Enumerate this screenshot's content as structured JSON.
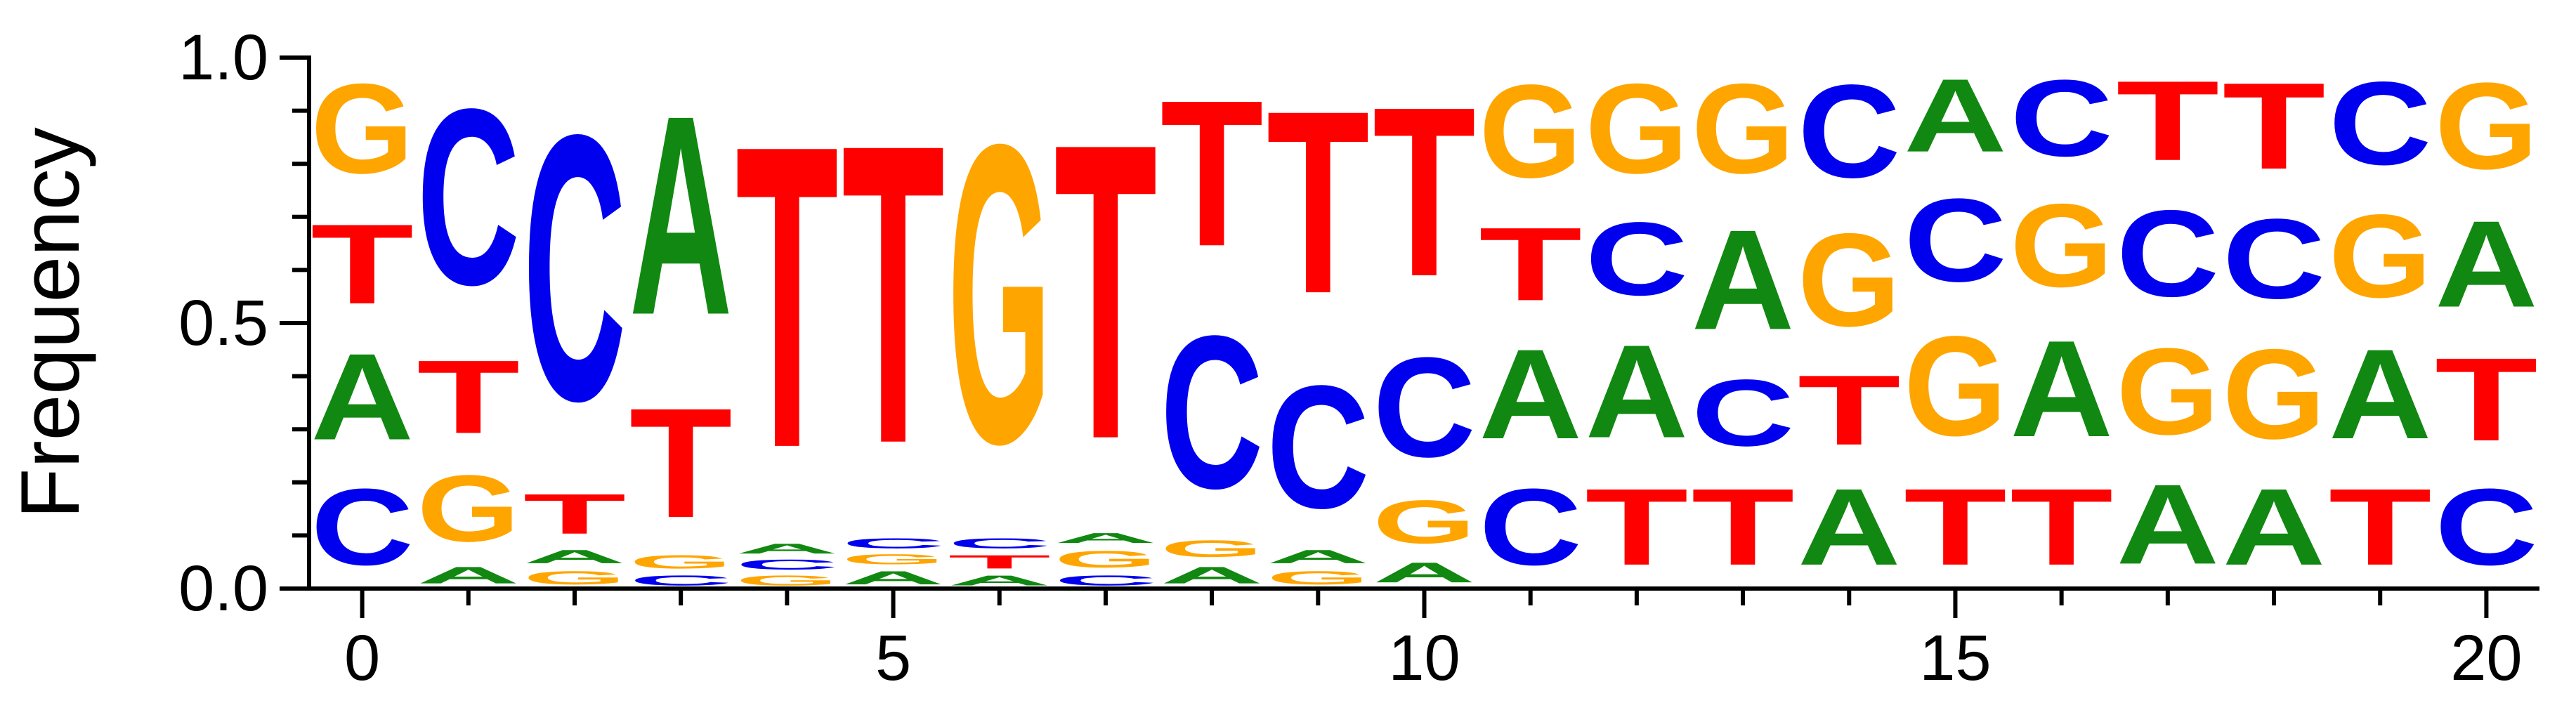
{
  "chart_data": {
    "type": "sequence-logo",
    "title": "",
    "xlabel": "",
    "ylabel": "Frequency",
    "xlim": [
      -0.5,
      20.5
    ],
    "ylim": [
      0,
      1
    ],
    "x_ticks": [
      0,
      5,
      10,
      15,
      20
    ],
    "y_ticks": [
      0.0,
      0.5,
      1.0
    ],
    "y_tick_labels": [
      "0.0",
      "0.5",
      "1.0"
    ],
    "grid": false,
    "legend": "none",
    "colors": {
      "A": "#118811",
      "C": "#0000ee",
      "G": "#ffa500",
      "T": "#ff0000"
    },
    "positions": [
      {
        "x": 0,
        "stack": [
          [
            "C",
            0.23
          ],
          [
            "A",
            0.26
          ],
          [
            "T",
            0.24
          ],
          [
            "G",
            0.27
          ]
        ]
      },
      {
        "x": 1,
        "stack": [
          [
            "A",
            0.05
          ],
          [
            "G",
            0.2
          ],
          [
            "T",
            0.22
          ],
          [
            "C",
            0.53
          ]
        ]
      },
      {
        "x": 2,
        "stack": [
          [
            "G",
            0.04
          ],
          [
            "A",
            0.04
          ],
          [
            "T",
            0.12
          ],
          [
            "C",
            0.8
          ]
        ]
      },
      {
        "x": 3,
        "stack": [
          [
            "C",
            0.03
          ],
          [
            "G",
            0.04
          ],
          [
            "T",
            0.33
          ],
          [
            "A",
            0.6
          ]
        ]
      },
      {
        "x": 4,
        "stack": [
          [
            "G",
            0.03
          ],
          [
            "C",
            0.03
          ],
          [
            "A",
            0.03
          ],
          [
            "T",
            0.91
          ]
        ]
      },
      {
        "x": 5,
        "stack": [
          [
            "A",
            0.04
          ],
          [
            "G",
            0.03
          ],
          [
            "C",
            0.03
          ],
          [
            "T",
            0.9
          ]
        ]
      },
      {
        "x": 6,
        "stack": [
          [
            "A",
            0.03
          ],
          [
            "T",
            0.04
          ],
          [
            "C",
            0.03
          ],
          [
            "G",
            0.9
          ]
        ]
      },
      {
        "x": 7,
        "stack": [
          [
            "C",
            0.03
          ],
          [
            "G",
            0.05
          ],
          [
            "A",
            0.03
          ],
          [
            "T",
            0.89
          ]
        ]
      },
      {
        "x": 8,
        "stack": [
          [
            "A",
            0.05
          ],
          [
            "G",
            0.05
          ],
          [
            "C",
            0.46
          ],
          [
            "T",
            0.44
          ]
        ]
      },
      {
        "x": 9,
        "stack": [
          [
            "G",
            0.04
          ],
          [
            "A",
            0.04
          ],
          [
            "C",
            0.37
          ],
          [
            "T",
            0.55
          ]
        ]
      },
      {
        "x": 10,
        "stack": [
          [
            "A",
            0.06
          ],
          [
            "G",
            0.13
          ],
          [
            "C",
            0.3
          ],
          [
            "T",
            0.51
          ]
        ]
      },
      {
        "x": 11,
        "stack": [
          [
            "C",
            0.23
          ],
          [
            "A",
            0.27
          ],
          [
            "T",
            0.22
          ],
          [
            "G",
            0.28
          ]
        ]
      },
      {
        "x": 12,
        "stack": [
          [
            "T",
            0.23
          ],
          [
            "A",
            0.28
          ],
          [
            "C",
            0.22
          ],
          [
            "G",
            0.27
          ]
        ]
      },
      {
        "x": 13,
        "stack": [
          [
            "T",
            0.23
          ],
          [
            "C",
            0.2
          ],
          [
            "A",
            0.3
          ],
          [
            "G",
            0.27
          ]
        ]
      },
      {
        "x": 14,
        "stack": [
          [
            "A",
            0.23
          ],
          [
            "T",
            0.21
          ],
          [
            "G",
            0.28
          ],
          [
            "C",
            0.28
          ]
        ]
      },
      {
        "x": 15,
        "stack": [
          [
            "T",
            0.23
          ],
          [
            "G",
            0.3
          ],
          [
            "C",
            0.25
          ],
          [
            "A",
            0.22
          ]
        ]
      },
      {
        "x": 16,
        "stack": [
          [
            "T",
            0.23
          ],
          [
            "A",
            0.29
          ],
          [
            "G",
            0.25
          ],
          [
            "C",
            0.23
          ]
        ]
      },
      {
        "x": 17,
        "stack": [
          [
            "A",
            0.24
          ],
          [
            "G",
            0.26
          ],
          [
            "C",
            0.26
          ],
          [
            "T",
            0.24
          ]
        ]
      },
      {
        "x": 18,
        "stack": [
          [
            "A",
            0.23
          ],
          [
            "G",
            0.27
          ],
          [
            "C",
            0.24
          ],
          [
            "T",
            0.26
          ]
        ]
      },
      {
        "x": 19,
        "stack": [
          [
            "T",
            0.23
          ],
          [
            "A",
            0.27
          ],
          [
            "G",
            0.25
          ],
          [
            "C",
            0.25
          ]
        ]
      },
      {
        "x": 20,
        "stack": [
          [
            "C",
            0.23
          ],
          [
            "T",
            0.25
          ],
          [
            "A",
            0.26
          ],
          [
            "G",
            0.26
          ]
        ]
      }
    ]
  }
}
